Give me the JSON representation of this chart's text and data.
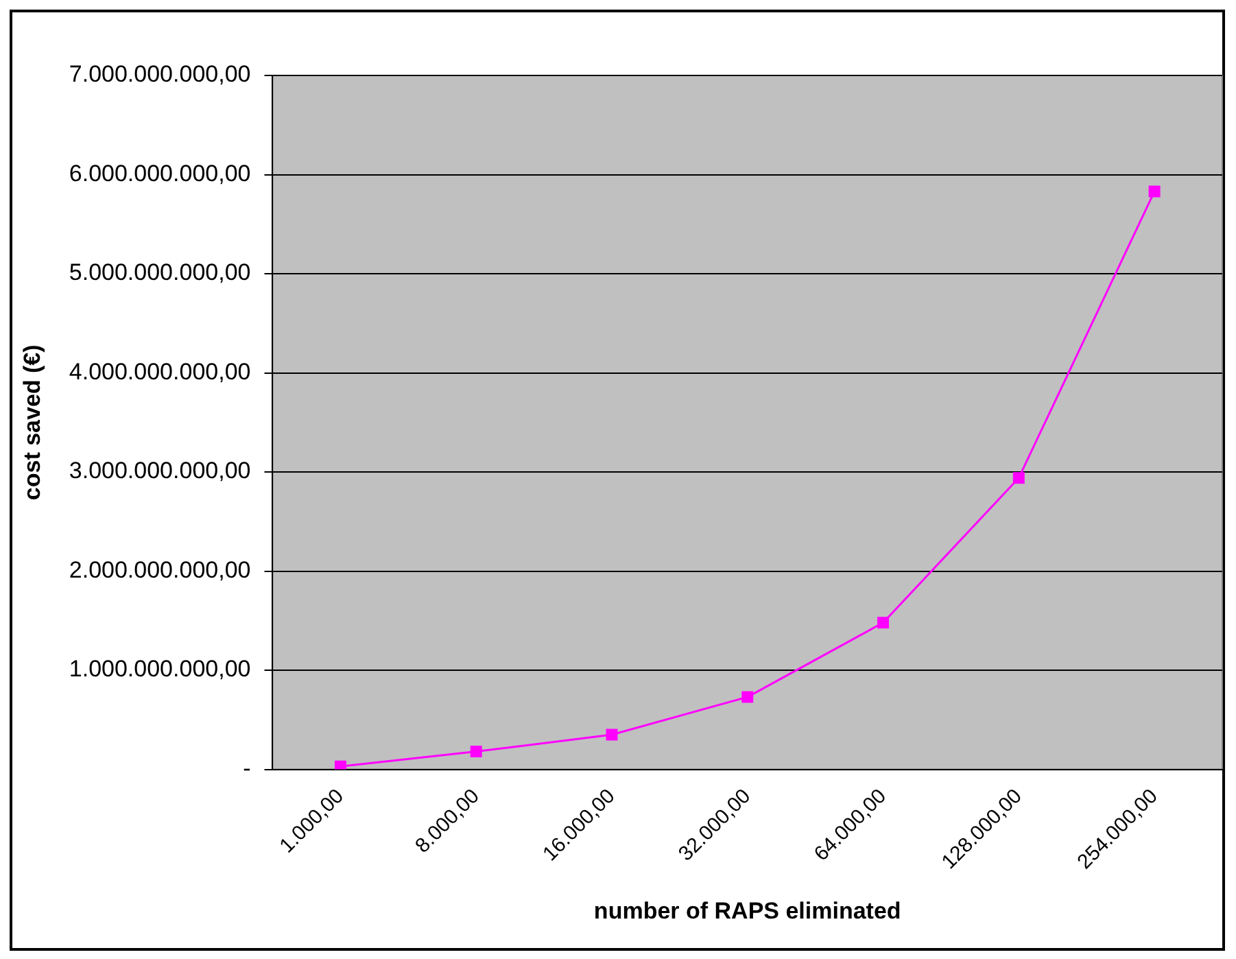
{
  "chart_data": {
    "type": "line",
    "xlabel": "number of RAPS eliminated",
    "ylabel": "cost saved (€)",
    "categories": [
      "1.000,00",
      "8.000,00",
      "16.000,00",
      "32.000,00",
      "64.000,00",
      "128.000,00",
      "254.000,00"
    ],
    "series": [
      {
        "color": "#ff00ff",
        "values": [
          30000000,
          180000000,
          350000000,
          730000000,
          1480000000,
          2940000000,
          5830000000
        ]
      }
    ],
    "ylim": [
      0,
      7000000000
    ],
    "yticks": [
      {
        "value": 0,
        "label": "-"
      },
      {
        "value": 1000000000,
        "label": "1.000.000.000,00"
      },
      {
        "value": 2000000000,
        "label": "2.000.000.000,00"
      },
      {
        "value": 3000000000,
        "label": "3.000.000.000,00"
      },
      {
        "value": 4000000000,
        "label": "4.000.000.000,00"
      },
      {
        "value": 5000000000,
        "label": "5.000.000.000,00"
      },
      {
        "value": 6000000000,
        "label": "6.000.000.000,00"
      },
      {
        "value": 7000000000,
        "label": "7.000.000.000,00"
      }
    ],
    "grid": "y",
    "legend": false,
    "marker": "square",
    "line_style": "solid"
  }
}
